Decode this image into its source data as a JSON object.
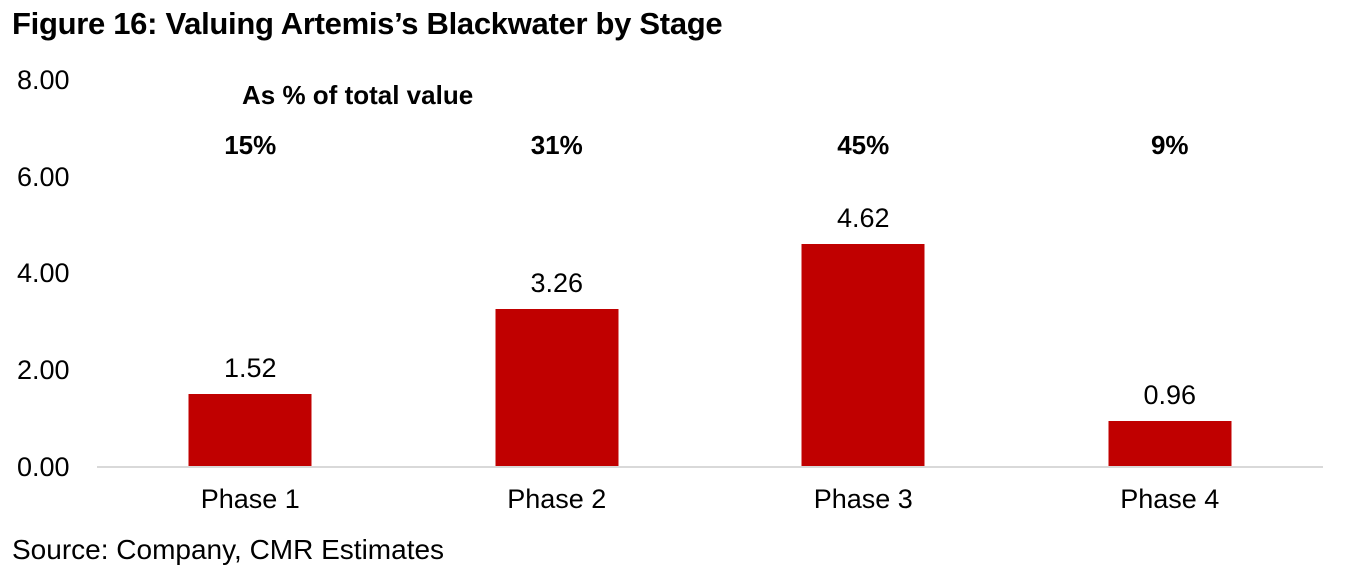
{
  "title": "Figure 16: Valuing Artemis’s Blackwater by Stage",
  "annotation": "As % of total value",
  "source": "Source: Company, CMR Estimates",
  "colors": {
    "bar": "#c00000",
    "axis_line": "#d9d9d9",
    "text": "#000000"
  },
  "chart_data": {
    "type": "bar",
    "title": "Figure 16: Valuing Artemis’s Blackwater by Stage",
    "categories": [
      "Phase 1",
      "Phase 2",
      "Phase 3",
      "Phase 4"
    ],
    "values": [
      1.52,
      3.26,
      4.62,
      0.96
    ],
    "value_labels": [
      "1.52",
      "3.26",
      "4.62",
      "0.96"
    ],
    "percent_labels": [
      "15%",
      "31%",
      "45%",
      "9%"
    ],
    "percent_annotation": "As % of total value",
    "y_ticks": [
      "8.00",
      "6.00",
      "4.00",
      "2.00",
      "0.00"
    ],
    "ylim": [
      0,
      8
    ],
    "xlabel": "",
    "ylabel": "",
    "grid": false,
    "legend": null,
    "bar_color": "#c00000",
    "source": "Source: Company, CMR Estimates"
  }
}
